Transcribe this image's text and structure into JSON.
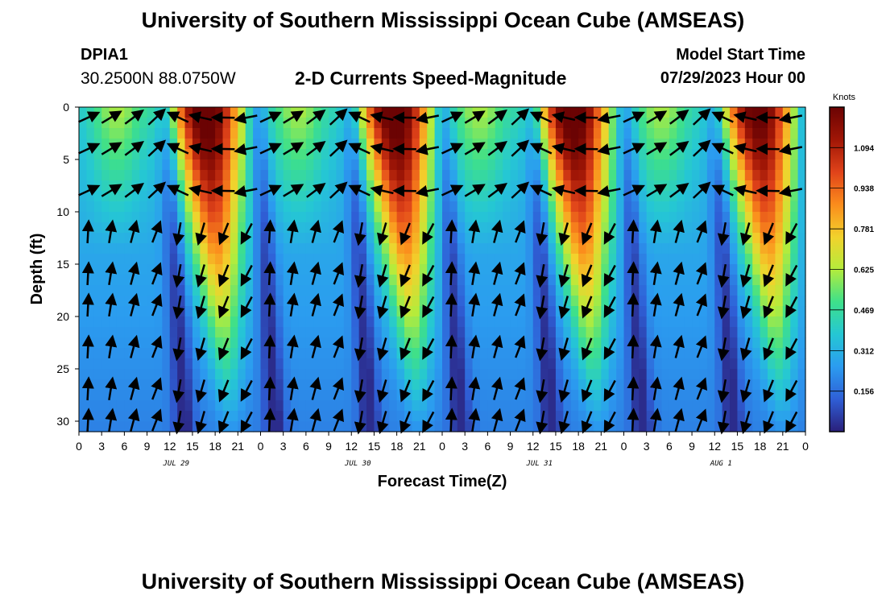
{
  "header": {
    "title": "University of Southern Mississippi Ocean Cube (AMSEAS)",
    "station_id": "DPIA1",
    "station_coords": "30.2500N  88.0750W",
    "subtitle": "2-D Currents Speed-Magnitude",
    "model_start_label": "Model Start Time",
    "model_start_value": "07/29/2023 Hour 00"
  },
  "footer": {
    "title": "University of Southern Mississippi Ocean Cube (AMSEAS)"
  },
  "colors": {
    "scale": [
      "#2a1f7a",
      "#2f5fd6",
      "#2b9cf0",
      "#25c7d4",
      "#3ee08a",
      "#b4ec3c",
      "#f2d22c",
      "#fb8c1c",
      "#e0431a",
      "#a01606",
      "#6b0303"
    ]
  },
  "chart_data": {
    "type": "heatmap",
    "title": "2-D Currents Speed-Magnitude",
    "xlabel": "Forecast Time(Z)",
    "ylabel": "Depth (ft)",
    "x_ticks": [
      "0",
      "3",
      "6",
      "9",
      "12",
      "15",
      "18",
      "21",
      "0",
      "3",
      "6",
      "9",
      "12",
      "15",
      "18",
      "21",
      "0",
      "3",
      "6",
      "9",
      "12",
      "15",
      "18",
      "21",
      "0",
      "3",
      "6",
      "9",
      "12",
      "15",
      "18",
      "21",
      "0"
    ],
    "x_range_hours": [
      0,
      96
    ],
    "date_labels": [
      {
        "label": "JUL 29",
        "hour": 12
      },
      {
        "label": "JUL 30",
        "hour": 36
      },
      {
        "label": "JUL 31",
        "hour": 60
      },
      {
        "label": "AUG 1",
        "hour": 84
      }
    ],
    "y_ticks": [
      0,
      5,
      10,
      15,
      20,
      25,
      30
    ],
    "ylim": [
      0,
      31
    ],
    "colorbar": {
      "unit": "Knots",
      "range": [
        0,
        1.25
      ],
      "ticks": [
        "0.156",
        "0.312",
        "0.469",
        "0.625",
        "0.781",
        "0.938",
        "1.094"
      ]
    },
    "arrow_hours": [
      0,
      3,
      6,
      9,
      12,
      15,
      18,
      21,
      24,
      27,
      30,
      33,
      36,
      39,
      42,
      45,
      48,
      51,
      54,
      57,
      60,
      63,
      66,
      69,
      72,
      75,
      78,
      81,
      84,
      87,
      90,
      93
    ],
    "arrow_depths": [
      1,
      4,
      8,
      12,
      16,
      19,
      23,
      27,
      30
    ]
  }
}
